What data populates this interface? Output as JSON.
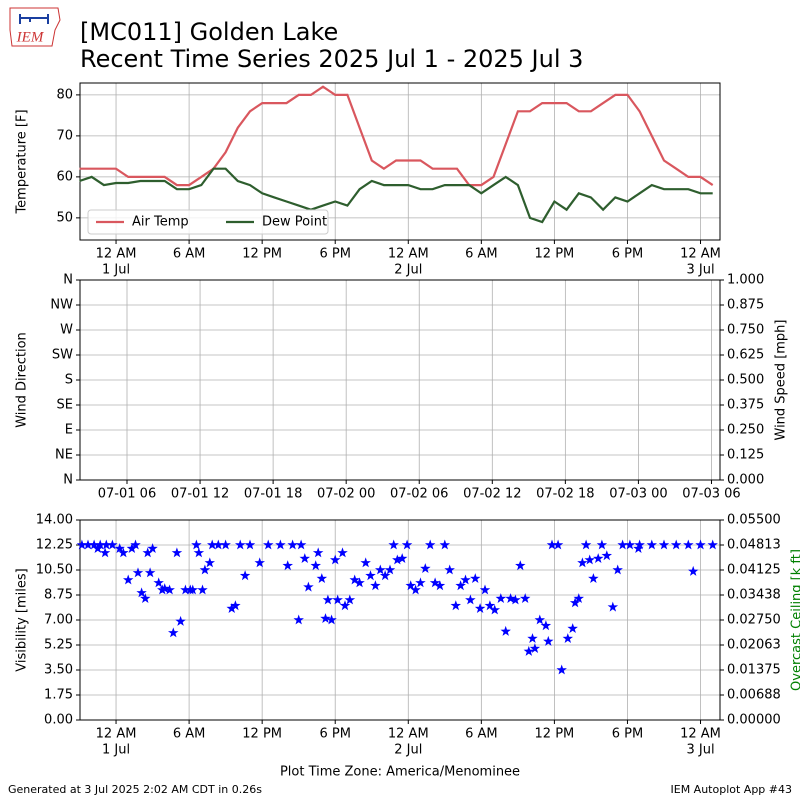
{
  "header": {
    "logo": "IEM",
    "title": "[MC011] Golden Lake",
    "subtitle": "Recent Time Series 2025 Jul 1 - 2025 Jul 3"
  },
  "footer": {
    "left": "Generated at 3 Jul 2025 2:02 AM CDT in 0.26s",
    "right": "IEM Autoplot App #43"
  },
  "chart_data": [
    {
      "type": "line",
      "ylabel": "Temperature [F]",
      "grid": true,
      "legend": "lower-left",
      "xlim": [
        -2.96,
        49.6
      ],
      "ylim": [
        44.6,
        82.9
      ],
      "yticks": [
        50,
        60,
        70,
        80
      ],
      "xticks": [
        {
          "value": 0,
          "label": "12 AM",
          "date": "1 Jul"
        },
        {
          "value": 6,
          "label": "6 AM"
        },
        {
          "value": 12,
          "label": "12 PM"
        },
        {
          "value": 18,
          "label": "6 PM"
        },
        {
          "value": 24,
          "label": "12 AM",
          "date": "2 Jul"
        },
        {
          "value": 30,
          "label": "6 AM"
        },
        {
          "value": 36,
          "label": "12 PM"
        },
        {
          "value": 42,
          "label": "6 PM"
        },
        {
          "value": 48,
          "label": "12 AM",
          "date": "3 Jul"
        }
      ],
      "x": [
        -3,
        -2,
        -1,
        0,
        1,
        2,
        3,
        4,
        5,
        6,
        7,
        8,
        9,
        10,
        11,
        12,
        13,
        14,
        15,
        16,
        17,
        18,
        19,
        20,
        21,
        22,
        23,
        24,
        25,
        26,
        27,
        28,
        29,
        30,
        31,
        32,
        33,
        34,
        35,
        36,
        37,
        38,
        39,
        40,
        41,
        42,
        43,
        44,
        45,
        46,
        47,
        48,
        49
      ],
      "series": [
        {
          "name": "Air Temp",
          "color": "#d9575e",
          "values": [
            62,
            62,
            62,
            62,
            60,
            60,
            60,
            60,
            58,
            58,
            60,
            62,
            66,
            72,
            76,
            78,
            78,
            78,
            80,
            80,
            82,
            80,
            80,
            72,
            64,
            62,
            64,
            64,
            64,
            62,
            62,
            62,
            58,
            58,
            60,
            68,
            76,
            76,
            78,
            78,
            78,
            76,
            76,
            78,
            80,
            80,
            76,
            70,
            64,
            62,
            60,
            60,
            58
          ]
        },
        {
          "name": "Dew Point",
          "color": "#2e5e2e",
          "values": [
            59,
            60,
            58,
            58.5,
            58.5,
            59,
            59,
            59,
            57,
            57,
            58,
            62,
            62,
            59,
            58,
            56,
            55,
            54,
            53,
            52,
            53,
            54,
            53,
            57,
            59,
            58,
            58,
            58,
            57,
            57,
            58,
            58,
            58,
            56,
            58,
            60,
            58,
            50,
            49,
            54,
            52,
            56,
            55,
            52,
            55,
            54,
            56,
            58,
            57,
            57,
            57,
            56,
            56
          ]
        }
      ]
    },
    {
      "type": "line",
      "ylabel": "Wind Direction",
      "y2label": "Wind Speed [mph]",
      "grid": true,
      "xlim": [
        2.14,
        54.7
      ],
      "ylim": [
        0,
        360
      ],
      "y2lim": [
        0,
        1
      ],
      "xticks": [
        {
          "value": 6,
          "label": "07-01 06"
        },
        {
          "value": 12,
          "label": "07-01 12"
        },
        {
          "value": 18,
          "label": "07-01 18"
        },
        {
          "value": 24,
          "label": "07-02 00"
        },
        {
          "value": 30,
          "label": "07-02 06"
        },
        {
          "value": 36,
          "label": "07-02 12"
        },
        {
          "value": 42,
          "label": "07-02 18"
        },
        {
          "value": 48,
          "label": "07-03 00"
        },
        {
          "value": 54,
          "label": "07-03 06"
        }
      ],
      "yticks": [
        {
          "value": 0,
          "label": "N"
        },
        {
          "value": 45,
          "label": "NE"
        },
        {
          "value": 90,
          "label": "E"
        },
        {
          "value": 135,
          "label": "SE"
        },
        {
          "value": 180,
          "label": "S"
        },
        {
          "value": 225,
          "label": "SW"
        },
        {
          "value": 270,
          "label": "W"
        },
        {
          "value": 315,
          "label": "NW"
        },
        {
          "value": 360,
          "label": "N"
        }
      ],
      "y2ticks": [
        {
          "value": 0,
          "label": "0.000"
        },
        {
          "value": 0.125,
          "label": "0.125"
        },
        {
          "value": 0.25,
          "label": "0.250"
        },
        {
          "value": 0.375,
          "label": "0.375"
        },
        {
          "value": 0.5,
          "label": "0.500"
        },
        {
          "value": 0.625,
          "label": "0.625"
        },
        {
          "value": 0.75,
          "label": "0.750"
        },
        {
          "value": 0.875,
          "label": "0.875"
        },
        {
          "value": 1,
          "label": "1.000"
        }
      ],
      "x": [],
      "series": []
    },
    {
      "type": "scatter",
      "ylabel": "Visibility [miles]",
      "y2label": "Overcast Ceiling [k ft]",
      "y2label_color": "#008000",
      "xlabel": "Plot Time Zone: America/Menominee",
      "grid": true,
      "color": "#0000ff",
      "xlim": [
        -2.96,
        49.6
      ],
      "ylim": [
        0,
        14
      ],
      "y2lim": [
        0,
        0.055
      ],
      "xticks": [
        {
          "value": 0,
          "label": "12 AM",
          "date": "1 Jul"
        },
        {
          "value": 6,
          "label": "6 AM"
        },
        {
          "value": 12,
          "label": "12 PM"
        },
        {
          "value": 18,
          "label": "6 PM"
        },
        {
          "value": 24,
          "label": "12 AM",
          "date": "2 Jul"
        },
        {
          "value": 30,
          "label": "6 AM"
        },
        {
          "value": 36,
          "label": "12 PM"
        },
        {
          "value": 42,
          "label": "6 PM"
        },
        {
          "value": 48,
          "label": "12 AM",
          "date": "3 Jul"
        }
      ],
      "yticks": [
        {
          "value": 0,
          "label": "0.00"
        },
        {
          "value": 1.75,
          "label": "1.75"
        },
        {
          "value": 3.5,
          "label": "3.50"
        },
        {
          "value": 5.25,
          "label": "5.25"
        },
        {
          "value": 7,
          "label": "7.00"
        },
        {
          "value": 8.75,
          "label": "8.75"
        },
        {
          "value": 10.5,
          "label": "10.50"
        },
        {
          "value": 12.25,
          "label": "12.25"
        },
        {
          "value": 14,
          "label": "14.00"
        }
      ],
      "y2ticks": [
        {
          "value": 0,
          "label": "0.00000"
        },
        {
          "value": 0.006875,
          "label": "0.00688"
        },
        {
          "value": 0.01375,
          "label": "0.01375"
        },
        {
          "value": 0.020625,
          "label": "0.02063"
        },
        {
          "value": 0.0275,
          "label": "0.02750"
        },
        {
          "value": 0.034375,
          "label": "0.03438"
        },
        {
          "value": 0.04125,
          "label": "0.04125"
        },
        {
          "value": 0.048125,
          "label": "0.04813"
        },
        {
          "value": 0.055,
          "label": "0.05500"
        }
      ],
      "x": [
        -2.8,
        -2.3,
        -1.8,
        -1.5,
        -1.3,
        -0.9,
        -0.8,
        -0.3,
        0.3,
        0.6,
        1.0,
        1.3,
        1.6,
        1.8,
        2.1,
        2.4,
        2.6,
        2.8,
        3.0,
        3.5,
        3.8,
        4.0,
        4.4,
        4.7,
        5.0,
        5.3,
        5.7,
        6.1,
        6.3,
        6.6,
        6.8,
        7.1,
        7.3,
        7.7,
        7.9,
        8.4,
        9.0,
        9.5,
        9.8,
        10.2,
        10.6,
        11.0,
        11.8,
        12.5,
        13.5,
        14.1,
        14.5,
        15.0,
        15.2,
        15.5,
        15.8,
        16.4,
        16.6,
        16.9,
        17.2,
        17.4,
        17.7,
        18.0,
        18.2,
        18.6,
        18.8,
        19.2,
        19.6,
        20.0,
        20.5,
        20.9,
        21.3,
        21.7,
        22.1,
        22.5,
        22.8,
        23.1,
        23.5,
        23.9,
        24.2,
        24.6,
        25.0,
        25.4,
        25.8,
        26.2,
        26.6,
        27.0,
        27.4,
        27.9,
        28.3,
        28.7,
        29.1,
        29.5,
        29.9,
        30.3,
        30.7,
        31.1,
        31.6,
        32.0,
        32.4,
        32.8,
        33.2,
        33.6,
        33.9,
        34.2,
        34.4,
        34.8,
        35.3,
        35.5,
        35.8,
        36.3,
        36.6,
        37.1,
        37.5,
        37.7,
        38.0,
        38.3,
        38.6,
        38.9,
        39.2,
        39.6,
        39.9,
        40.3,
        40.8,
        41.2,
        41.6,
        42.2,
        42.9,
        43.0,
        44.0,
        45.0,
        46.0,
        47.0,
        47.4,
        48.0,
        49.0
      ],
      "values": [
        12.25,
        12.25,
        12.25,
        12.0,
        12.25,
        11.7,
        12.25,
        12.25,
        12.0,
        11.7,
        9.8,
        12.0,
        12.25,
        10.3,
        8.9,
        8.5,
        11.7,
        10.3,
        12.0,
        9.6,
        9.1,
        9.2,
        9.1,
        6.1,
        11.7,
        6.9,
        9.1,
        9.1,
        9.1,
        12.25,
        11.7,
        9.1,
        10.5,
        11.0,
        12.25,
        12.25,
        12.25,
        7.8,
        8.0,
        12.25,
        10.1,
        12.25,
        11.0,
        12.25,
        12.25,
        10.8,
        12.25,
        7.0,
        12.25,
        11.3,
        9.3,
        10.8,
        11.7,
        9.9,
        7.1,
        8.4,
        7.0,
        11.2,
        8.4,
        11.7,
        8.0,
        8.4,
        9.8,
        9.6,
        11.0,
        10.1,
        9.4,
        10.5,
        10.1,
        10.5,
        12.25,
        11.2,
        11.3,
        12.25,
        9.4,
        9.1,
        9.6,
        10.6,
        12.25,
        9.6,
        9.4,
        12.25,
        10.5,
        8.0,
        9.4,
        9.8,
        8.4,
        9.9,
        7.8,
        9.1,
        8.0,
        7.7,
        8.5,
        6.2,
        8.5,
        8.4,
        10.8,
        8.5,
        4.8,
        5.7,
        5.0,
        7.0,
        6.6,
        5.5,
        12.25,
        12.25,
        3.5,
        5.7,
        6.4,
        8.2,
        8.5,
        11.0,
        12.25,
        11.2,
        9.9,
        11.3,
        12.25,
        11.5,
        7.9,
        10.5,
        12.25,
        12.25,
        12.0,
        12.25,
        12.25,
        12.25,
        12.25,
        12.25,
        10.4,
        12.25,
        12.25
      ]
    }
  ]
}
